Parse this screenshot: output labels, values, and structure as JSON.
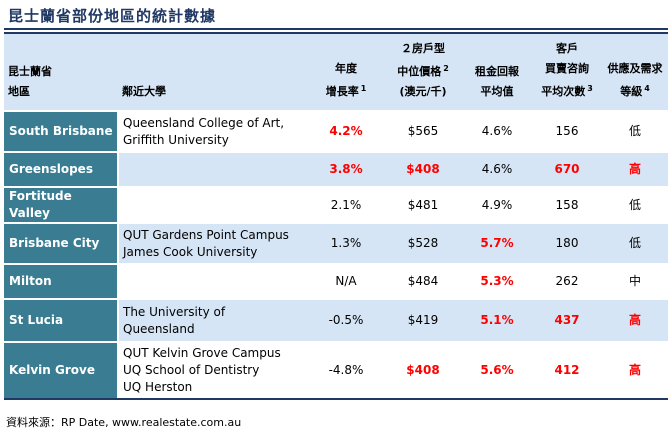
{
  "title": "昆士蘭省部份地區的統計數據",
  "headers": {
    "area": [
      "昆士蘭省",
      "地區"
    ],
    "university": "鄰近大學",
    "growth": [
      "年度",
      "增長率"
    ],
    "growth_sup": "1",
    "median": [
      "２房戶型",
      "中位價格",
      "(澳元/千)"
    ],
    "median_sup": "2",
    "yield": [
      "租金回報",
      "平均值"
    ],
    "inquiries": [
      "客戶",
      "買賣咨詢",
      "平均次數"
    ],
    "inquiries_sup": "3",
    "supply": [
      "供應及需求",
      "等級"
    ],
    "supply_sup": "4"
  },
  "rows": [
    {
      "area": "South Brisbane",
      "uni": [
        "Queensland College of Art,",
        "Griffith University"
      ],
      "growth": "4.2%",
      "growth_hl": true,
      "median": "$565",
      "median_hl": false,
      "yield": "4.6%",
      "yield_hl": false,
      "inq": "156",
      "inq_hl": false,
      "supply": "低",
      "supply_hl": false
    },
    {
      "area": "Greenslopes",
      "uni": [],
      "growth": "3.8%",
      "growth_hl": true,
      "median": "$408",
      "median_hl": true,
      "yield": "4.6%",
      "yield_hl": false,
      "inq": "670",
      "inq_hl": true,
      "supply": "高",
      "supply_hl": true
    },
    {
      "area": "Fortitude Valley",
      "uni": [],
      "growth": "2.1%",
      "growth_hl": false,
      "median": "$481",
      "median_hl": false,
      "yield": "4.9%",
      "yield_hl": false,
      "inq": "158",
      "inq_hl": false,
      "supply": "低",
      "supply_hl": false
    },
    {
      "area": "Brisbane City",
      "uni": [
        "QUT Gardens Point Campus",
        "James Cook University"
      ],
      "growth": "1.3%",
      "growth_hl": false,
      "median": "$528",
      "median_hl": false,
      "yield": "5.7%",
      "yield_hl": true,
      "inq": "180",
      "inq_hl": false,
      "supply": "低",
      "supply_hl": false
    },
    {
      "area": "Milton",
      "uni": [],
      "growth": "N/A",
      "growth_hl": false,
      "median": "$484",
      "median_hl": false,
      "yield": "5.3%",
      "yield_hl": true,
      "inq": "262",
      "inq_hl": false,
      "supply": "中",
      "supply_hl": false
    },
    {
      "area": "St Lucia",
      "uni": [
        "The University of",
        "Queensland"
      ],
      "growth": "-0.5%",
      "growth_hl": false,
      "median": "$419",
      "median_hl": false,
      "yield": "5.1%",
      "yield_hl": true,
      "inq": "437",
      "inq_hl": true,
      "supply": "高",
      "supply_hl": true
    },
    {
      "area": "Kelvin Grove",
      "uni": [
        "QUT Kelvin Grove Campus",
        "UQ School of Dentistry",
        "UQ Herston"
      ],
      "growth": "-4.8%",
      "growth_hl": false,
      "median": "$408",
      "median_hl": true,
      "yield": "5.6%",
      "yield_hl": true,
      "inq": "412",
      "inq_hl": true,
      "supply": "高",
      "supply_hl": true
    }
  ],
  "source": "資料來源：RP Date, www.realestate.com.au"
}
